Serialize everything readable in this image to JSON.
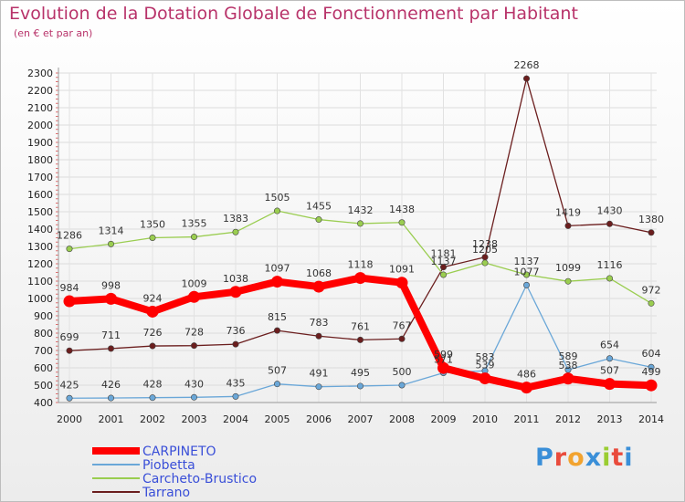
{
  "header": {
    "title": "Evolution de la Dotation Globale de Fonctionnement par Habitant",
    "subtitle": "(en € et par an)"
  },
  "branding": {
    "logo_text": "Proxiti"
  },
  "chart_data": {
    "type": "line",
    "title": "Evolution de la Dotation Globale de Fonctionnement par Habitant",
    "subtitle": "(en € et par an)",
    "xlabel": "",
    "ylabel": "",
    "x": [
      "2000",
      "2001",
      "2002",
      "2003",
      "2004",
      "2005",
      "2006",
      "2007",
      "2008",
      "2009",
      "2010",
      "2011",
      "2012",
      "2013",
      "2014"
    ],
    "ylim": [
      400,
      2300
    ],
    "yticks": [
      400,
      500,
      600,
      700,
      800,
      900,
      1000,
      1100,
      1200,
      1300,
      1400,
      1500,
      1600,
      1700,
      1800,
      1900,
      2000,
      2100,
      2200,
      2300
    ],
    "grid": true,
    "legend_position": "bottom-left",
    "series": [
      {
        "name": "Tarrano",
        "color": "#6b1e1e",
        "emphasis": false,
        "values": [
          699,
          711,
          726,
          728,
          736,
          815,
          783,
          761,
          767,
          1181,
          1238,
          2268,
          1419,
          1430,
          1380
        ]
      },
      {
        "name": "Carcheto-Brustico",
        "color": "#9acd50",
        "emphasis": false,
        "values": [
          1286,
          1314,
          1350,
          1355,
          1383,
          1505,
          1455,
          1432,
          1438,
          1137,
          1205,
          1137,
          1099,
          1116,
          972
        ]
      },
      {
        "name": "Piobetta",
        "color": "#6aa7d8",
        "emphasis": false,
        "values": [
          425,
          426,
          428,
          430,
          435,
          507,
          491,
          495,
          500,
          571,
          583,
          1077,
          589,
          654,
          604
        ]
      },
      {
        "name": "CARPINETO",
        "color": "#ff0000",
        "emphasis": true,
        "values": [
          984,
          998,
          924,
          1009,
          1038,
          1097,
          1068,
          1118,
          1091,
          599,
          539,
          486,
          538,
          507,
          499
        ]
      }
    ]
  }
}
